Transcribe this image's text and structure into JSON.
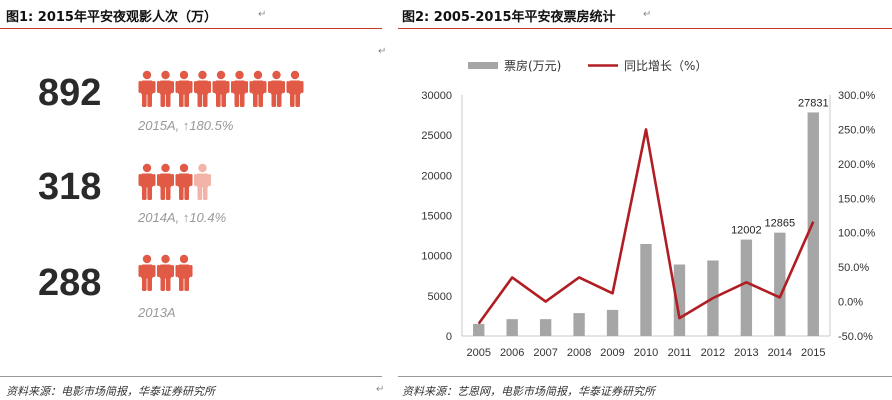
{
  "left": {
    "title": "图1:   2015年平安夜观影人次（万）",
    "source": "资料来源：电影市场简报，华泰证券研究所",
    "icon_color": "#e05a45",
    "icon_fade_color": "#f2b3a8",
    "rows": [
      {
        "value": "892",
        "label": "2015A, ↑180.5%",
        "icons": 9
      },
      {
        "value": "318",
        "label": "2014A, ↑10.4%",
        "icons": 3.5
      },
      {
        "value": "288",
        "label": "2013A",
        "icons": 3
      }
    ]
  },
  "right": {
    "title": "图2:   2005-2015年平安夜票房统计",
    "source": "资料来源：艺恩网，电影市场简报，华泰证券研究所"
  },
  "chart_data": {
    "type": "bar",
    "categories": [
      "2005",
      "2006",
      "2007",
      "2008",
      "2009",
      "2010",
      "2011",
      "2012",
      "2013",
      "2014",
      "2015"
    ],
    "series": [
      {
        "name": "票房(万元)",
        "type": "bar",
        "axis": "left",
        "color": "#a6a6a6",
        "values": [
          1500,
          2100,
          2100,
          2850,
          3250,
          11450,
          8900,
          9400,
          12002,
          12865,
          27831
        ]
      },
      {
        "name": "同比增长（%）",
        "type": "line",
        "axis": "right",
        "color": "#b01e23",
        "values": [
          -32,
          35,
          0,
          35,
          12,
          250,
          -24,
          5,
          28,
          6,
          116
        ]
      }
    ],
    "data_labels": [
      {
        "category": "2013",
        "text": "12002"
      },
      {
        "category": "2014",
        "text": "12865"
      },
      {
        "category": "2015",
        "text": "27831"
      }
    ],
    "ylim_left": [
      0,
      30000
    ],
    "yticks_left": [
      "0",
      "5000",
      "10000",
      "15000",
      "20000",
      "25000",
      "30000"
    ],
    "ylim_right": [
      -50,
      300
    ],
    "yticks_right": [
      "-50.0%",
      "0.0%",
      "50.0%",
      "100.0%",
      "150.0%",
      "200.0%",
      "250.0%",
      "300.0%"
    ],
    "legend": "top-left"
  }
}
